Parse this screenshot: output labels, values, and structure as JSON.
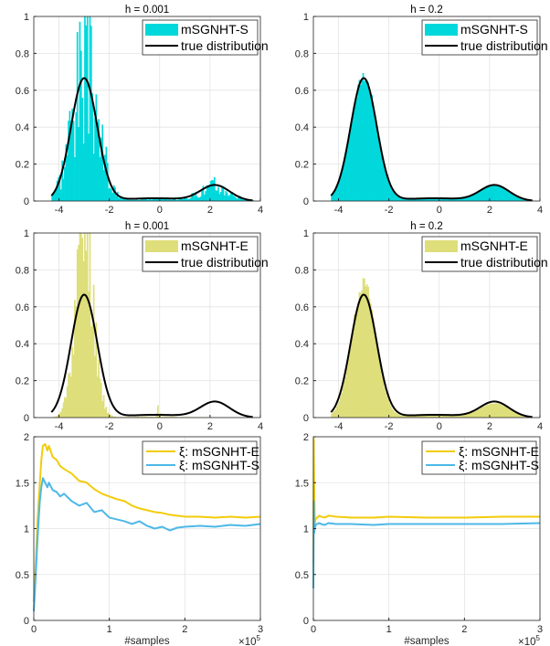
{
  "chart_data": [
    {
      "type": "histogram",
      "title": "h = 0.001",
      "xlim": [
        -5,
        4
      ],
      "ylim": [
        0,
        1
      ],
      "xticks": [
        -4,
        -2,
        0,
        2,
        4
      ],
      "yticks": [
        0,
        0.2,
        0.4,
        0.6,
        0.8,
        1
      ],
      "grid": true,
      "legend_position": "top-right",
      "histogram": {
        "name": "mSGNHT-S",
        "color": "#00d8dc",
        "noise": 0.9,
        "spread": 1.0,
        "rightmass": 0.85,
        "seed": 3
      },
      "curve": {
        "name": "true distribution"
      }
    },
    {
      "type": "histogram",
      "title": "h = 0.2",
      "xlim": [
        -5,
        4
      ],
      "ylim": [
        0,
        1
      ],
      "xticks": [
        -4,
        -2,
        0,
        2,
        4
      ],
      "yticks": [
        0,
        0.2,
        0.4,
        0.6,
        0.8,
        1
      ],
      "grid": true,
      "legend_position": "top-right",
      "histogram": {
        "name": "mSGNHT-S",
        "color": "#00d8dc",
        "noise": 0.06,
        "spread": 1.0,
        "rightmass": 1.0,
        "seed": 7
      },
      "curve": {
        "name": "true distribution"
      }
    },
    {
      "type": "histogram",
      "title": "h = 0.001",
      "xlim": [
        -5,
        4
      ],
      "ylim": [
        0,
        1
      ],
      "xticks": [
        -4,
        -2,
        0,
        2,
        4
      ],
      "yticks": [
        0,
        0.2,
        0.4,
        0.6,
        0.8,
        1
      ],
      "grid": true,
      "legend_position": "top-right",
      "histogram": {
        "name": "mSGNHT-E",
        "color": "#dede7a",
        "noise": 0.55,
        "spread": 0.68,
        "rightmass": 0.0,
        "seed": 11
      },
      "curve": {
        "name": "true distribution"
      }
    },
    {
      "type": "histogram",
      "title": "h = 0.2",
      "xlim": [
        -5,
        4
      ],
      "ylim": [
        0,
        1
      ],
      "xticks": [
        -4,
        -2,
        0,
        2,
        4
      ],
      "yticks": [
        0,
        0.2,
        0.4,
        0.6,
        0.8,
        1
      ],
      "grid": true,
      "legend_position": "top-right",
      "histogram": {
        "name": "mSGNHT-E",
        "color": "#dede7a",
        "noise": 0.07,
        "spread": 0.92,
        "rightmass": 0.9,
        "seed": 13
      },
      "curve": {
        "name": "true distribution"
      }
    },
    {
      "type": "line",
      "xlabel": "#samples",
      "xscale_label": "×10",
      "xscale_exp": "5",
      "xlim": [
        0,
        3
      ],
      "ylim": [
        0,
        2
      ],
      "xticks": [
        0,
        1,
        2,
        3
      ],
      "yticks": [
        0,
        0.5,
        1,
        1.5,
        2
      ],
      "grid": true,
      "legend_position": "top-right",
      "series": [
        {
          "name": "ξ: mSGNHT-E",
          "color": "#f2cc0c",
          "x": [
            0,
            0.02,
            0.05,
            0.08,
            0.1,
            0.12,
            0.15,
            0.18,
            0.2,
            0.25,
            0.3,
            0.35,
            0.4,
            0.5,
            0.6,
            0.7,
            0.8,
            0.9,
            1.0,
            1.1,
            1.2,
            1.3,
            1.4,
            1.5,
            1.6,
            1.7,
            1.8,
            1.9,
            2.0,
            2.2,
            2.4,
            2.6,
            2.8,
            3.0
          ],
          "values": [
            0.2,
            0.5,
            1.1,
            1.5,
            1.75,
            1.9,
            1.92,
            1.85,
            1.9,
            1.78,
            1.75,
            1.68,
            1.65,
            1.6,
            1.52,
            1.5,
            1.43,
            1.38,
            1.35,
            1.32,
            1.3,
            1.25,
            1.22,
            1.2,
            1.18,
            1.17,
            1.15,
            1.14,
            1.13,
            1.13,
            1.12,
            1.13,
            1.12,
            1.13
          ]
        },
        {
          "name": "ξ: mSGNHT-S",
          "color": "#4db8e8",
          "x": [
            0,
            0.02,
            0.05,
            0.08,
            0.1,
            0.12,
            0.15,
            0.18,
            0.2,
            0.25,
            0.3,
            0.35,
            0.4,
            0.5,
            0.6,
            0.7,
            0.8,
            0.9,
            1.0,
            1.1,
            1.2,
            1.3,
            1.4,
            1.5,
            1.6,
            1.7,
            1.8,
            1.9,
            2.0,
            2.2,
            2.4,
            2.6,
            2.8,
            3.0
          ],
          "values": [
            0.1,
            0.4,
            0.9,
            1.3,
            1.45,
            1.55,
            1.5,
            1.45,
            1.5,
            1.42,
            1.4,
            1.35,
            1.38,
            1.3,
            1.25,
            1.28,
            1.18,
            1.2,
            1.12,
            1.1,
            1.08,
            1.05,
            1.08,
            1.03,
            1.0,
            1.02,
            0.98,
            1.01,
            1.02,
            1.03,
            1.02,
            1.04,
            1.03,
            1.05
          ]
        }
      ]
    },
    {
      "type": "line",
      "xlabel": "#samples",
      "xscale_label": "×10",
      "xscale_exp": "5",
      "xlim": [
        0,
        3
      ],
      "ylim": [
        0,
        2
      ],
      "xticks": [
        0,
        1,
        2,
        3
      ],
      "yticks": [
        0,
        0.5,
        1,
        1.5,
        2
      ],
      "grid": true,
      "legend_position": "top-right",
      "series": [
        {
          "name": "ξ: mSGNHT-E",
          "color": "#f2cc0c",
          "x": [
            0,
            0.005,
            0.01,
            0.02,
            0.03,
            0.05,
            0.08,
            0.1,
            0.15,
            0.2,
            0.3,
            0.5,
            0.8,
            1.0,
            1.5,
            2.0,
            2.5,
            3.0
          ],
          "values": [
            0.6,
            1.98,
            1.5,
            1.05,
            1.1,
            1.12,
            1.14,
            1.13,
            1.12,
            1.14,
            1.13,
            1.12,
            1.12,
            1.13,
            1.12,
            1.12,
            1.13,
            1.13
          ]
        },
        {
          "name": "ξ: mSGNHT-S",
          "color": "#4db8e8",
          "x": [
            0,
            0.005,
            0.01,
            0.02,
            0.03,
            0.05,
            0.08,
            0.1,
            0.15,
            0.2,
            0.3,
            0.5,
            0.8,
            1.0,
            1.5,
            2.0,
            2.5,
            3.0
          ],
          "values": [
            0.35,
            1.3,
            0.95,
            1.0,
            1.04,
            1.05,
            1.06,
            1.05,
            1.04,
            1.06,
            1.05,
            1.05,
            1.04,
            1.05,
            1.05,
            1.05,
            1.05,
            1.06
          ]
        }
      ]
    }
  ]
}
